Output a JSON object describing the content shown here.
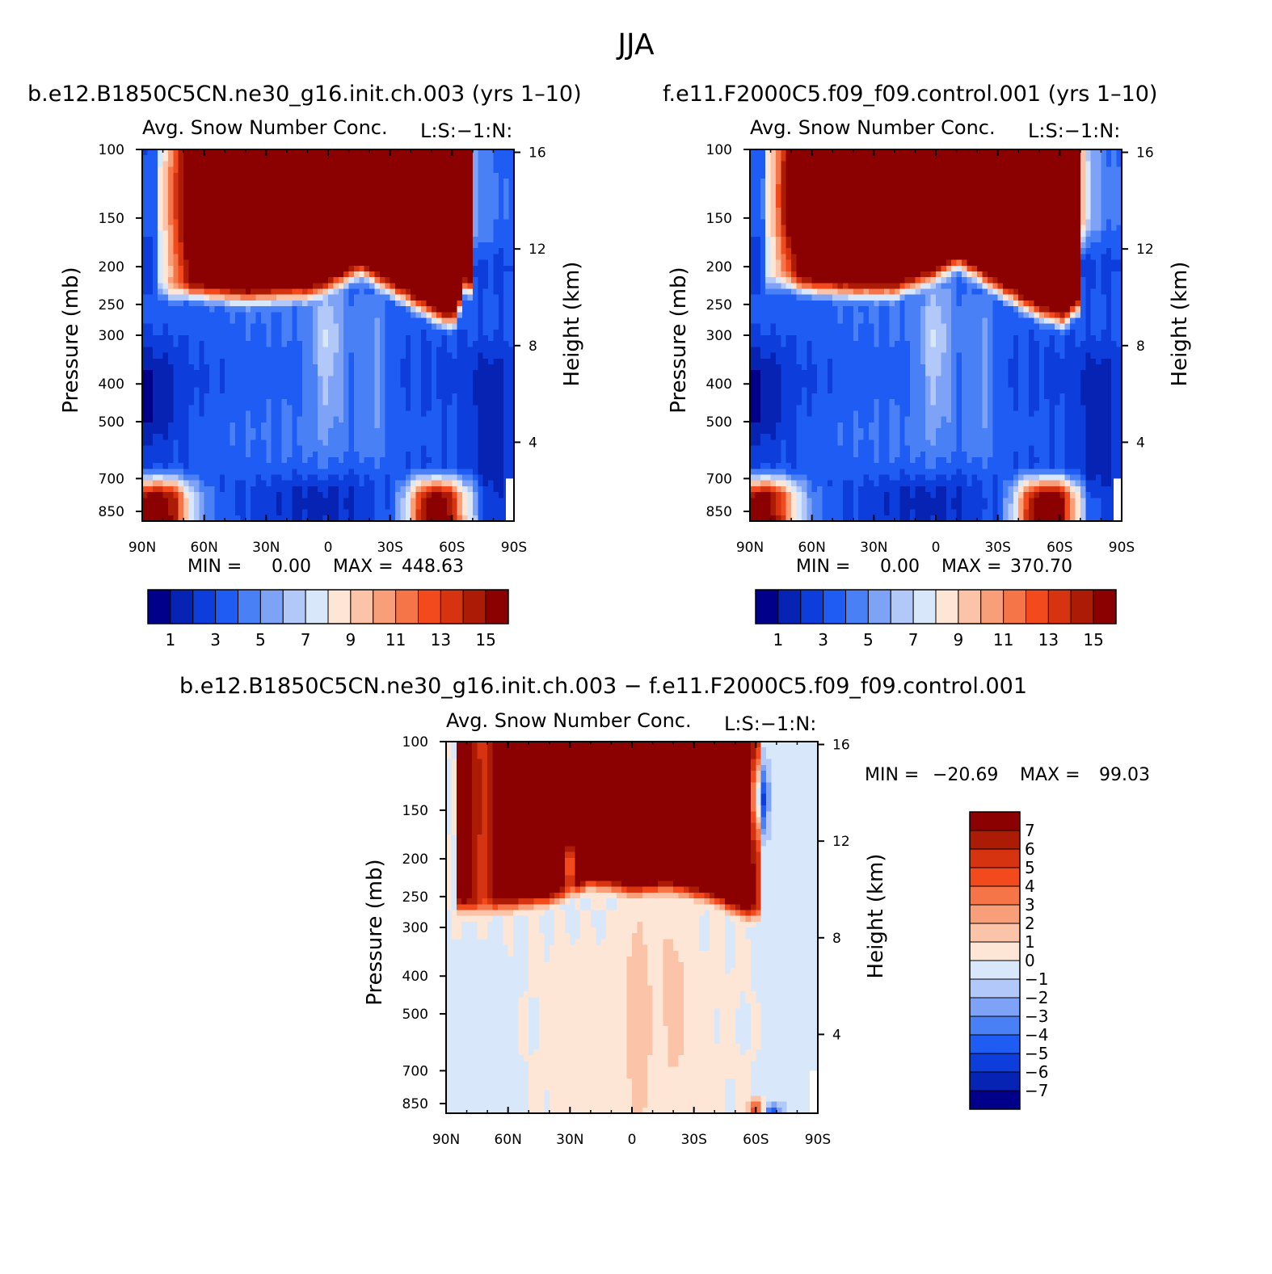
{
  "page": {
    "title": "JJA"
  },
  "palette": {
    "blue_red_16": [
      "#00008b",
      "#0623b3",
      "#0d3edb",
      "#1e5cf3",
      "#4a80f5",
      "#7ea3f6",
      "#b2c8f8",
      "#d9e7fb",
      "#fde6d6",
      "#fbc4a8",
      "#f89e78",
      "#f57548",
      "#f24a1c",
      "#d63310",
      "#ac1b05",
      "#8b0000"
    ]
  },
  "chart_data": [
    {
      "id": "panel-a",
      "type": "contour",
      "case": "b.e12.B1850C5CN.ne30_g16.init.ch.003 (yrs 1–10)",
      "subtitle_left": "Avg. Snow Number Conc.",
      "subtitle_right": "L:S:−1:N:",
      "ylabel": "Pressure (mb)",
      "ylabel_right": "Height (km)",
      "x_ticks": [
        "90N",
        "60N",
        "30N",
        "0",
        "30S",
        "60S",
        "90S"
      ],
      "x_values": [
        90,
        60,
        30,
        0,
        -30,
        -60,
        -90
      ],
      "y_ticks": [
        "100",
        "150",
        "200",
        "250",
        "300",
        "400",
        "500",
        "700",
        "850"
      ],
      "y_values": [
        100,
        150,
        200,
        250,
        300,
        400,
        500,
        700,
        850
      ],
      "height_ticks": [
        "16",
        "12",
        "8",
        "4"
      ],
      "height_values": [
        16,
        12,
        8,
        4
      ],
      "ylim": [
        100,
        900
      ],
      "xlim": [
        90,
        -90
      ],
      "yscale": "log",
      "min_label": "MIN =",
      "min_value": "0.00",
      "max_label": "MAX =",
      "max_value": "448.63",
      "colorbar": {
        "orientation": "horizontal",
        "labels": [
          "1",
          "3",
          "5",
          "7",
          "9",
          "11",
          "13",
          "15"
        ],
        "levels": [
          1,
          2,
          3,
          4,
          5,
          6,
          7,
          8,
          9,
          10,
          11,
          12,
          13,
          14,
          15
        ]
      },
      "field": {
        "scale": 448.63,
        "top": [
          [
            90,
            0.02
          ],
          [
            80,
            0.03
          ],
          [
            72,
            0.1
          ],
          [
            68,
            0.18
          ],
          [
            62,
            0.9
          ],
          [
            57,
            1
          ],
          [
            45,
            1
          ],
          [
            25,
            1
          ],
          [
            0,
            1
          ],
          [
            -25,
            1
          ],
          [
            -40,
            1
          ],
          [
            -50,
            1
          ],
          [
            -57,
            0.9
          ],
          [
            -62,
            0.4
          ],
          [
            -67,
            0.2
          ],
          [
            -72,
            0.15
          ],
          [
            -80,
            0.08
          ],
          [
            -90,
            0.03
          ]
        ],
        "top_lev": [
          100,
          210
        ],
        "band_edge": [
          [
            90,
            255
          ],
          [
            82,
            250
          ],
          [
            76,
            260
          ],
          [
            70,
            255
          ],
          [
            60,
            258
          ],
          [
            40,
            265
          ],
          [
            20,
            260
          ],
          [
            10,
            258
          ],
          [
            0,
            245
          ],
          [
            -8,
            235
          ],
          [
            -16,
            225
          ],
          [
            -25,
            240
          ],
          [
            -40,
            270
          ],
          [
            -50,
            290
          ],
          [
            -57,
            305
          ],
          [
            -62,
            300
          ],
          [
            -66,
            250
          ]
        ],
        "bottom": [
          [
            90,
            0.9
          ],
          [
            82,
            1
          ],
          [
            74,
            0.8
          ],
          [
            66,
            0.3
          ],
          [
            58,
            0.1
          ],
          [
            52,
            0.03
          ],
          [
            40,
            0.01
          ],
          [
            20,
            0.005
          ],
          [
            0,
            0.004
          ],
          [
            -20,
            0.004
          ],
          [
            -30,
            0.05
          ],
          [
            -38,
            0.3
          ],
          [
            -45,
            0.8
          ],
          [
            -52,
            1
          ],
          [
            -58,
            0.9
          ],
          [
            -66,
            0.5
          ],
          [
            -76,
            0.1
          ],
          [
            -90,
            0.02
          ]
        ]
      }
    },
    {
      "id": "panel-b",
      "type": "contour",
      "case": "f.e11.F2000C5.f09_f09.control.001 (yrs 1–10)",
      "subtitle_left": "Avg. Snow Number Conc.",
      "subtitle_right": "L:S:−1:N:",
      "ylabel": "Pressure (mb)",
      "ylabel_right": "Height (km)",
      "x_ticks": [
        "90N",
        "60N",
        "30N",
        "0",
        "30S",
        "60S",
        "90S"
      ],
      "x_values": [
        90,
        60,
        30,
        0,
        -30,
        -60,
        -90
      ],
      "y_ticks": [
        "100",
        "150",
        "200",
        "250",
        "300",
        "400",
        "500",
        "700",
        "850"
      ],
      "y_values": [
        100,
        150,
        200,
        250,
        300,
        400,
        500,
        700,
        850
      ],
      "height_ticks": [
        "16",
        "12",
        "8",
        "4"
      ],
      "height_values": [
        16,
        12,
        8,
        4
      ],
      "ylim": [
        100,
        900
      ],
      "xlim": [
        90,
        -90
      ],
      "yscale": "log",
      "min_label": "MIN =",
      "min_value": "0.00",
      "max_label": "MAX =",
      "max_value": "370.70",
      "colorbar": {
        "orientation": "horizontal",
        "labels": [
          "1",
          "3",
          "5",
          "7",
          "9",
          "11",
          "13",
          "15"
        ],
        "levels": [
          1,
          2,
          3,
          4,
          5,
          6,
          7,
          8,
          9,
          10,
          11,
          12,
          13,
          14,
          15
        ]
      },
      "field": {
        "scale": 370.7,
        "top": [
          [
            90,
            0.02
          ],
          [
            80,
            0.05
          ],
          [
            72,
            0.2
          ],
          [
            66,
            0.4
          ],
          [
            58,
            0.9
          ],
          [
            50,
            1
          ],
          [
            30,
            1
          ],
          [
            0,
            1
          ],
          [
            -25,
            1
          ],
          [
            -40,
            1
          ],
          [
            -55,
            1
          ],
          [
            -64,
            0.9
          ],
          [
            -70,
            0.5
          ],
          [
            -76,
            0.2
          ],
          [
            -82,
            0.1
          ],
          [
            -90,
            0.05
          ]
        ],
        "top_lev": [
          100,
          200
        ],
        "band_edge": [
          [
            90,
            250
          ],
          [
            80,
            245
          ],
          [
            74,
            240
          ],
          [
            68,
            245
          ],
          [
            58,
            250
          ],
          [
            40,
            255
          ],
          [
            20,
            255
          ],
          [
            8,
            240
          ],
          [
            0,
            230
          ],
          [
            -10,
            215
          ],
          [
            -20,
            230
          ],
          [
            -35,
            260
          ],
          [
            -50,
            290
          ],
          [
            -62,
            305
          ],
          [
            -68,
            280
          ]
        ],
        "bottom": [
          [
            90,
            0.9
          ],
          [
            82,
            1
          ],
          [
            74,
            0.7
          ],
          [
            66,
            0.3
          ],
          [
            58,
            0.08
          ],
          [
            50,
            0.02
          ],
          [
            40,
            0.01
          ],
          [
            20,
            0.005
          ],
          [
            0,
            0.004
          ],
          [
            -20,
            0.004
          ],
          [
            -30,
            0.03
          ],
          [
            -38,
            0.3
          ],
          [
            -45,
            0.8
          ],
          [
            -52,
            1
          ],
          [
            -60,
            1
          ],
          [
            -66,
            0.6
          ],
          [
            -74,
            0.15
          ],
          [
            -90,
            0.02
          ]
        ]
      }
    },
    {
      "id": "panel-c",
      "type": "contour",
      "case": "b.e12.B1850C5CN.ne30_g16.init.ch.003 − f.e11.F2000C5.f09_f09.control.001",
      "subtitle_left": "Avg. Snow Number Conc.",
      "subtitle_right": "L:S:−1:N:",
      "ylabel": "Pressure (mb)",
      "ylabel_right": "Height (km)",
      "x_ticks": [
        "90N",
        "60N",
        "30N",
        "0",
        "30S",
        "60S",
        "90S"
      ],
      "x_values": [
        90,
        60,
        30,
        0,
        -30,
        -60,
        -90
      ],
      "y_ticks": [
        "100",
        "150",
        "200",
        "250",
        "300",
        "400",
        "500",
        "700",
        "850"
      ],
      "y_values": [
        100,
        150,
        200,
        250,
        300,
        400,
        500,
        700,
        850
      ],
      "height_ticks": [
        "16",
        "12",
        "8",
        "4"
      ],
      "height_values": [
        16,
        12,
        8,
        4
      ],
      "ylim": [
        100,
        900
      ],
      "xlim": [
        90,
        -90
      ],
      "yscale": "log",
      "min_label": "MIN =",
      "min_value": "−20.69",
      "max_label": "MAX =",
      "max_value": "99.03",
      "colorbar": {
        "orientation": "vertical",
        "labels": [
          "7",
          "6",
          "5",
          "4",
          "3",
          "2",
          "1",
          "0",
          "−1",
          "−2",
          "−3",
          "−4",
          "−5",
          "−6",
          "−7"
        ],
        "levels": [
          7,
          6,
          5,
          4,
          3,
          2,
          1,
          0,
          -1,
          -2,
          -3,
          -4,
          -5,
          -6,
          -7
        ]
      }
    }
  ]
}
